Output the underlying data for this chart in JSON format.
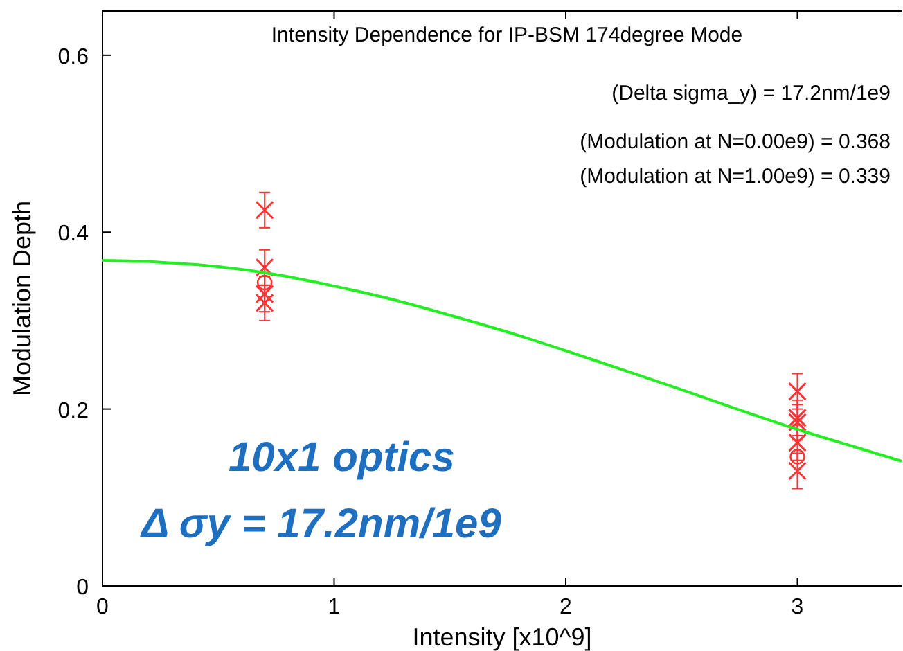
{
  "chart_data": {
    "type": "scatter",
    "title": "Intensity Dependence for IP-BSM 174degree Mode",
    "xlabel": "Intensity [x10^9]",
    "ylabel": "Modulation Depth",
    "xlim": [
      0,
      3.45
    ],
    "ylim": [
      0,
      0.65
    ],
    "xticks": [
      0,
      1,
      2,
      3
    ],
    "yticks": [
      0,
      0.2,
      0.4,
      0.6
    ],
    "grid": false,
    "series": [
      {
        "marker": "cross",
        "color": "#ff3333",
        "x": [
          0.7,
          0.7,
          0.7,
          0.7,
          3,
          3,
          3,
          3,
          3
        ],
        "values": [
          0.425,
          0.36,
          0.33,
          0.32,
          0.22,
          0.19,
          0.185,
          0.162,
          0.13
        ],
        "errors": [
          0.02,
          0.02,
          0.02,
          0.02,
          0.02,
          0.02,
          0.02,
          0.02,
          0.02
        ]
      },
      {
        "marker": "circle",
        "color": "#ff3333",
        "x": [
          0.7,
          3
        ],
        "values": [
          0.343,
          0.146
        ]
      },
      {
        "type": "line",
        "color": "#22ee22",
        "x": [
          0,
          0.25,
          0.5,
          0.75,
          1,
          1.25,
          1.5,
          1.75,
          2,
          2.25,
          2.5,
          2.75,
          3,
          3.25,
          3.45
        ],
        "values": [
          0.368,
          0.366,
          0.361,
          0.352,
          0.339,
          0.324,
          0.306,
          0.287,
          0.266,
          0.244,
          0.222,
          0.199,
          0.177,
          0.157,
          0.141
        ]
      }
    ],
    "annotations": [
      "(Delta sigma_y) = 17.2nm/1e9",
      "(Modulation at N=0.00e9) = 0.368",
      "(Modulation at N=1.00e9) = 0.339",
      "10x1 optics",
      "Δ σy = 17.2nm/1e9"
    ]
  }
}
